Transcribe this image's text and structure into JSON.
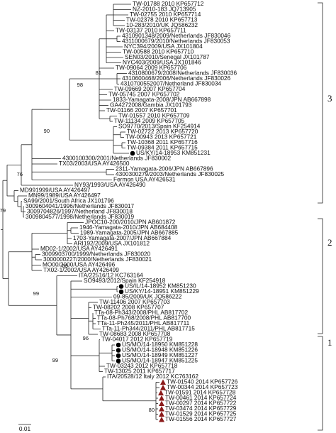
{
  "leaves": [
    {
      "label": "TW-01788 2010 KP657712"
    },
    {
      "label": "NZ-2010-183 JQ713905"
    },
    {
      "label": "TW-02755 2010 KP657714"
    },
    {
      "label": "TW-02378 2010 KP657713"
    },
    {
      "label": "10-283/2010/UK JQ586232"
    },
    {
      "label": "TW-03137 2010 KP657711"
    },
    {
      "label": "4310901348/2009/Netherlands JF830046"
    },
    {
      "label": "4311000679/2010/Netherlands JF830053"
    },
    {
      "label": "NYC394/2009/USA JX101804"
    },
    {
      "label": "TW-00588 2010 KP657710"
    },
    {
      "label": "SEN03/2010/Senegal JX101787"
    },
    {
      "label": "NYC403/2009/USA JX101846"
    },
    {
      "label": "TW-09064 2009 KP657706"
    },
    {
      "label": "4310800679/2008/Netherlands JF830036"
    },
    {
      "label": "4310600468/2006/Netherlands JF830026"
    },
    {
      "label": "4310700552007/Netherland JF830034"
    },
    {
      "label": "TW-09669 2007 KP657704"
    },
    {
      "label": "TW-05745 2007 KP657702"
    },
    {
      "label": "1833-Yamagata-2008/JPN AB667898"
    },
    {
      "label": "GA4272008/Gambia JX101793"
    },
    {
      "label": "TW-01166 2007 KP657701"
    },
    {
      "label": "TW-01557 2010 KP657709"
    },
    {
      "label": "TW-11134 2009 KP657705"
    },
    {
      "label": "SO9770/2013/Spain KF254914"
    },
    {
      "label": "TW-02722 2013 KP657720"
    },
    {
      "label": "TW-00943 2013 KP657721"
    },
    {
      "label": "TW-10368 2011 KP657716"
    },
    {
      "label": "TW-09384 2011 KP657715"
    },
    {
      "label": "US/KY/14-18953 KM851231",
      "marker": "circle"
    },
    {
      "label": "4300100300/2001/Netherlands JF830002"
    },
    {
      "label": "TX03/2003/USA AY426500"
    },
    {
      "label": "2311-Yamagata-2006/JPN AB667896"
    },
    {
      "label": "4300300279/2003/Netherlands JF830025"
    },
    {
      "label": "Fermon USA AY426531"
    },
    {
      "label": "NY93/1993/USA AY426490"
    },
    {
      "label": "MD991999/USA AY426497"
    },
    {
      "label": "MN99/1989/USA AY426497"
    },
    {
      "label": "SA99/2001/South Africa JX101796"
    },
    {
      "label": "3009604041/1996/Netherlands JF830017"
    },
    {
      "label": "3009704826/1997/Netherland JF830018"
    },
    {
      "label": "3009804577/1998/Netherlands JF830019"
    },
    {
      "label": "JPOC10-200/2010/JPN AB601872"
    },
    {
      "label": "1946-Yamagata-2010/JPN AB684408"
    },
    {
      "label": "1989-Yamagata-2005/JPN AB667885"
    },
    {
      "label": "1703-Yamagata-2007/JPN AB667884"
    },
    {
      "label": "ARI192/2009/USA JX101812"
    },
    {
      "label": "MD02-1/2002/USA AY426491"
    },
    {
      "label": "3009903700/1999/Netherlands JF830020"
    },
    {
      "label": "3000000227/2000/Netherlands JF830021"
    },
    {
      "label": "MO00/2000/USA AY426496"
    },
    {
      "label": "TX02-1/2002/USA AY426499"
    },
    {
      "label": "ITA/22516/12 KC763164"
    },
    {
      "label": "SO9493/2012/Spain KF254918"
    },
    {
      "label": "US/IL/14-18952 KM851230",
      "marker": "circle"
    },
    {
      "label": "US/KY/14-18951 KM851229",
      "marker": "circle"
    },
    {
      "label": "09-85/2009/UK JQ586222"
    },
    {
      "label": "TW-11406 2007 KP657703"
    },
    {
      "label": "TW-08202 2008 KP657707"
    },
    {
      "label": "TTa-08-Ph343/2008/PHL AB817702"
    },
    {
      "label": "TTa-08-Ph768/2008/PHL AB817700"
    },
    {
      "label": "TTa-11-Ph245/2011/PHL AB817711"
    },
    {
      "label": "TTa-11-Ph344/2011/PHL AB817715"
    },
    {
      "label": "TW-08683 2008 KP657708"
    },
    {
      "label": "TW-04017 2012 KP657719"
    },
    {
      "label": "US/MO/14-18950 KM851228",
      "marker": "circle"
    },
    {
      "label": "US/MO/14-18948 KM851226",
      "marker": "circle"
    },
    {
      "label": "US/MO/14-18949 KM851227",
      "marker": "circle"
    },
    {
      "label": "US/MO/14-18947 KM851225",
      "marker": "circle"
    },
    {
      "label": "TW-03243 2012 KP657718"
    },
    {
      "label": "TW-13025 2011 KP657717"
    },
    {
      "label": "ITA/20528/12 Italy 2012 KC763162"
    },
    {
      "label": "TW-01540 2014 KP657726",
      "marker": "triangle"
    },
    {
      "label": "TW-00344 2014 KP657723",
      "marker": "triangle"
    },
    {
      "label": "TW-01591 2014 KP657728",
      "marker": "triangle"
    },
    {
      "label": "TW-00461 2014 KP657724",
      "marker": "triangle"
    },
    {
      "label": "TW-00297 2014 KP657722",
      "marker": "triangle"
    },
    {
      "label": "TW-03474 2014 KP657729",
      "marker": "triangle"
    },
    {
      "label": "TW-01529 2014 KP657725",
      "marker": "triangle"
    },
    {
      "label": "TW-01556 2014 KP657727",
      "marker": "triangle"
    }
  ],
  "bootstrap": [
    81,
    98,
    90,
    76,
    79,
    99,
    99,
    99,
    96,
    80
  ],
  "clades": [
    "3",
    "2",
    "1"
  ],
  "scale_bar": "0.01"
}
